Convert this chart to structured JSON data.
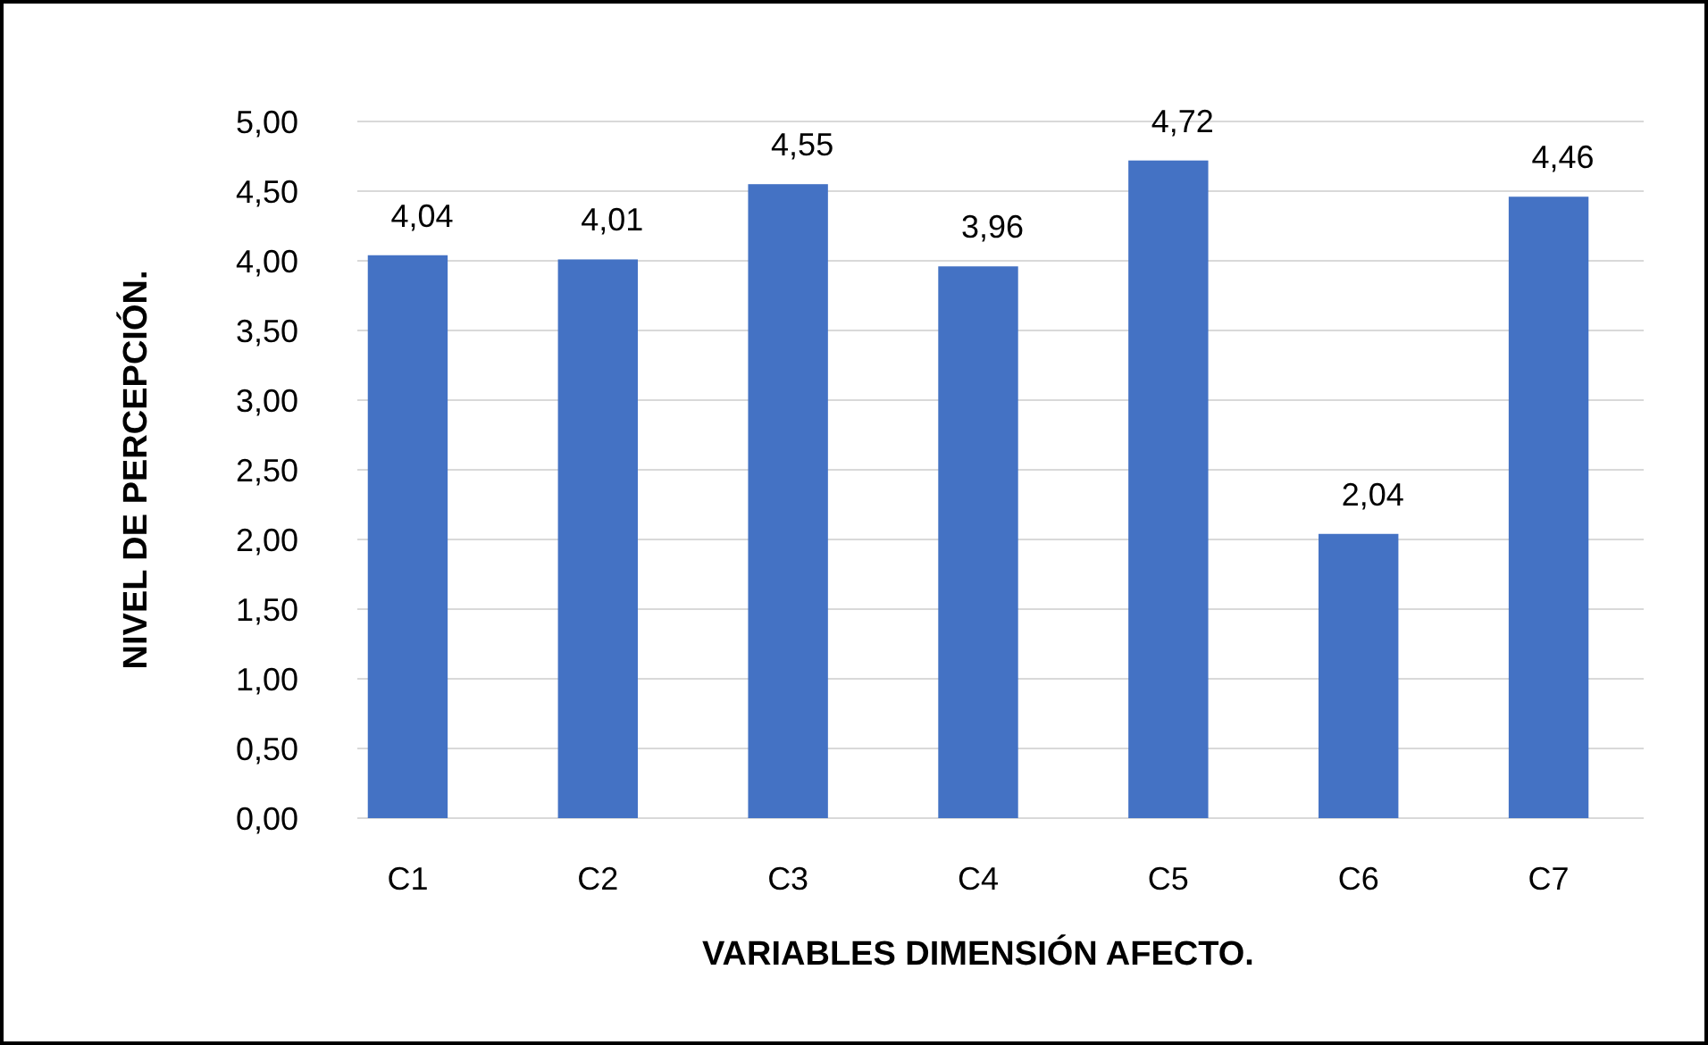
{
  "chart_data": {
    "type": "bar",
    "xlabel": "VARIABLES DIMENSIÓN AFECTO.",
    "ylabel": "NIVEL DE PERCEPCIÓN.",
    "categories": [
      "C1",
      "C2",
      "C3",
      "C4",
      "C5",
      "C6",
      "C7"
    ],
    "values": [
      4.04,
      4.01,
      4.55,
      3.96,
      4.72,
      2.04,
      4.46
    ],
    "value_labels": [
      "4,04",
      "4,01",
      "4,55",
      "3,96",
      "4,72",
      "2,04",
      "4,46"
    ],
    "color": "#4472c4",
    "ylim": [
      0,
      5
    ],
    "yticks": [
      {
        "value": 0,
        "label": "0,00"
      },
      {
        "value": 0.5,
        "label": "0,50"
      },
      {
        "value": 1,
        "label": "1,00"
      },
      {
        "value": 1.5,
        "label": "1,50"
      },
      {
        "value": 2,
        "label": "2,00"
      },
      {
        "value": 2.5,
        "label": "2,50"
      },
      {
        "value": 3,
        "label": "3,00"
      },
      {
        "value": 3.5,
        "label": "3,50"
      },
      {
        "value": 4,
        "label": "4,00"
      },
      {
        "value": 4.5,
        "label": "4,50"
      },
      {
        "value": 5,
        "label": "5,00"
      }
    ],
    "grid": "y"
  }
}
